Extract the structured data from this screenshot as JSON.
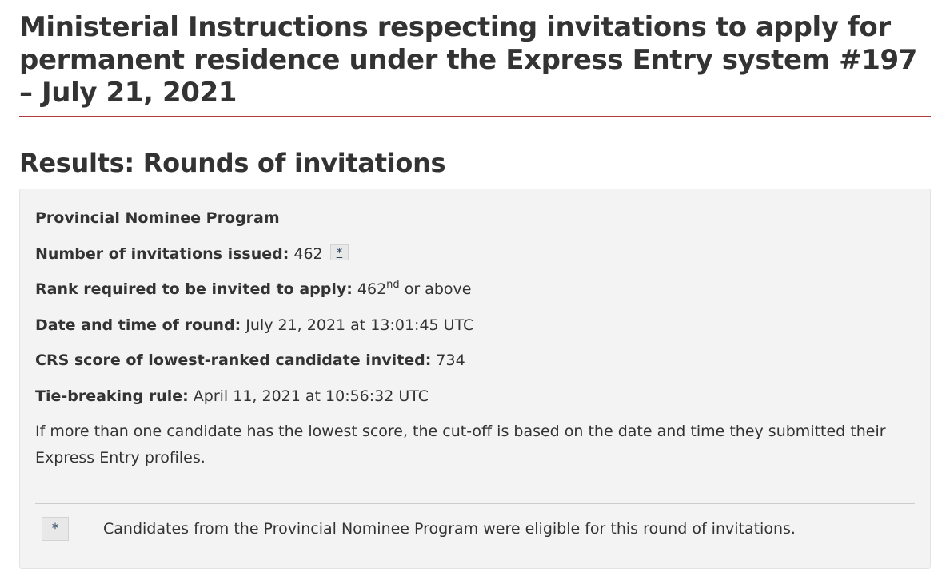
{
  "header": {
    "title": "Ministerial Instructions respecting invitations to apply for permanent residence under the Express Entry system #197 – July 21, 2021"
  },
  "results": {
    "heading": "Results: Rounds of invitations",
    "program": "Provincial Nominee Program",
    "invitations_label": "Number of invitations issued:",
    "invitations_value": "462",
    "footnote_marker": "*",
    "rank_label": "Rank required to be invited to apply:",
    "rank_value": "462",
    "rank_suffix": "nd",
    "rank_tail": "or above",
    "datetime_label": "Date and time of round:",
    "datetime_value": "July 21, 2021 at 13:01:45 UTC",
    "crs_label": "CRS score of lowest-ranked candidate invited:",
    "crs_value": "734",
    "tie_label": "Tie-breaking rule:",
    "tie_value": "April 11, 2021 at 10:56:32 UTC",
    "description": "If more than one candidate has the lowest score, the cut-off is based on the date and time they submitted their Express Entry profiles."
  },
  "footnotes": {
    "marker": "*",
    "text": "Candidates from the Provincial Nominee Program were eligible for this round of invitations."
  },
  "colors": {
    "title_rule": "#af3c43",
    "well_background": "#f3f3f3",
    "link": "#284162"
  }
}
